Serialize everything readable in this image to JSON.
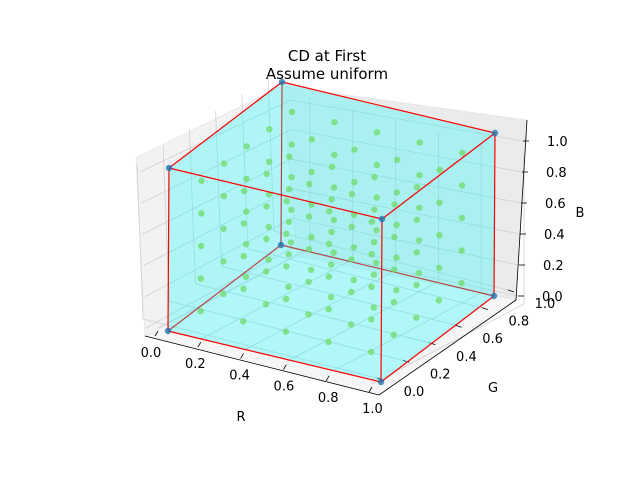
{
  "chart_data": {
    "type": "scatter3d",
    "title": [
      "CD at First",
      "Assume uniform"
    ],
    "xlabel": "R",
    "ylabel": "G",
    "zlabel": "B",
    "xlim": [
      0,
      1
    ],
    "ylim": [
      0,
      1
    ],
    "zlim": [
      0,
      1
    ],
    "xticks": [
      "0.0",
      "0.2",
      "0.4",
      "0.6",
      "0.8",
      "1.0"
    ],
    "yticks": [
      "0.0",
      "0.2",
      "0.4",
      "0.6",
      "0.8",
      "1.0"
    ],
    "zticks": [
      "0.0",
      "0.2",
      "0.4",
      "0.6",
      "0.8",
      "1.0"
    ],
    "grid": true,
    "cube": {
      "face_color": "#00ffff",
      "edge_color": "#ff0000",
      "corners": [
        [
          0,
          0,
          0
        ],
        [
          1,
          0,
          0
        ],
        [
          1,
          1,
          0
        ],
        [
          0,
          1,
          0
        ],
        [
          0,
          0,
          1
        ],
        [
          1,
          0,
          1
        ],
        [
          1,
          1,
          1
        ],
        [
          0,
          1,
          1
        ]
      ]
    },
    "series": [
      {
        "marker_color": "#9acd32",
        "grid_levels": [
          0.1,
          0.3,
          0.5,
          0.7,
          0.9
        ]
      },
      {
        "marker_color": "#1f77b4",
        "points": "cube corners"
      }
    ]
  }
}
